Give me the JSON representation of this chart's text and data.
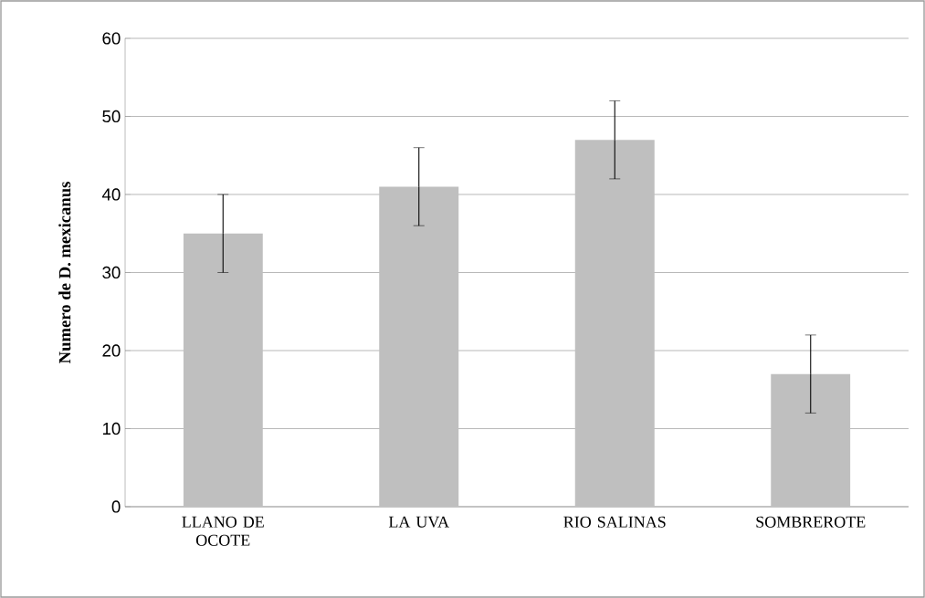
{
  "chart_data": {
    "type": "bar",
    "ylabel": "Numero de D. mexicanus",
    "categories": [
      "LLANO DE OCOTE",
      "LA UVA",
      "RIO SALINAS",
      "SOMBREROTE"
    ],
    "values": [
      35,
      41,
      47,
      17
    ],
    "errors": [
      5,
      5,
      5,
      5
    ],
    "color": "#bfbfbf",
    "ylim": [
      0,
      60
    ],
    "yticks": [
      0,
      10,
      20,
      30,
      40,
      50,
      60
    ],
    "grid": "y"
  }
}
